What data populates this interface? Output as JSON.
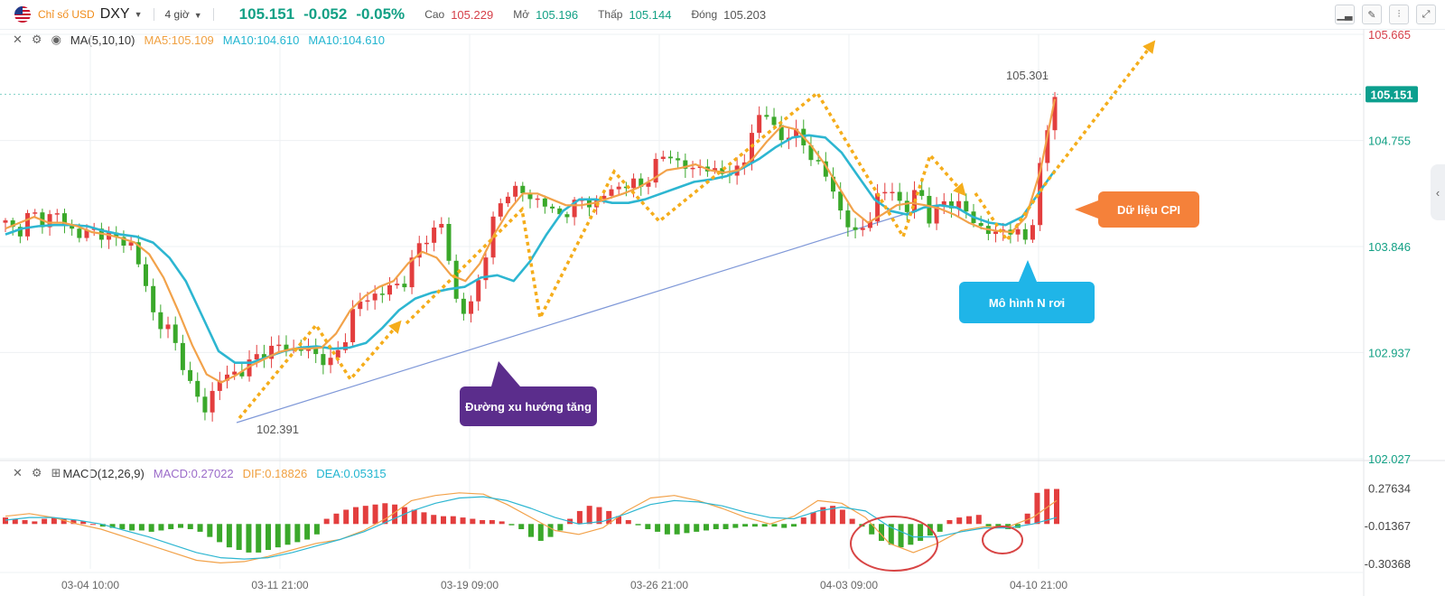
{
  "header": {
    "symbol_name": "Chỉ số USD",
    "symbol": "DXY",
    "timeframe": "4 giờ",
    "last_price": "105.151",
    "change": "-0.052",
    "change_pct": "-0.05%",
    "high_label": "Cao",
    "high_value": "105.229",
    "open_label": "Mở",
    "open_value": "105.196",
    "low_label": "Thấp",
    "low_value": "105.144",
    "close_label": "Đóng",
    "close_value": "105.203",
    "tools": [
      "chart-type-icon",
      "draw-icon",
      "indicator-icon",
      "fullscreen-icon"
    ]
  },
  "main_legend": {
    "indicator": "MA(5,10,10)",
    "ma5": "MA5:105.109",
    "ma10a": "MA10:104.610",
    "ma10b": "MA10:104.610"
  },
  "macd_legend": {
    "indicator": "MACD(12,26,9)",
    "macd": "MACD:0.27022",
    "dif": "DIF:0.18826",
    "dea": "DEA:0.05315"
  },
  "colors": {
    "up": "#e33e3e",
    "down": "#3aa82a",
    "ma5": "#f2a24a",
    "ma10": "#2db6d1",
    "trendline": "#7f98d8",
    "arrow": "#f5ad1b",
    "last_price_bg": "#0c9f8e"
  },
  "annotations": {
    "callout_cpi": "Dữ liệu CPI",
    "callout_n_pattern": "Mô hình N rơi",
    "callout_trend": "Đường xu hướng tăng",
    "low_marker": "102.391",
    "high_marker": "105.301"
  },
  "chart_data": [
    {
      "type": "candlestick",
      "name": "DXY",
      "y_ticks": [
        "105.665",
        "104.755",
        "103.846",
        "102.937",
        "102.027"
      ],
      "last_price_label": "105.151",
      "ylim": [
        102.027,
        105.665
      ],
      "x_ticks": [
        "03-04 10:00",
        "03-11 21:00",
        "03-19 09:00",
        "03-26 21:00",
        "04-03 09:00",
        "04-10 21:00"
      ],
      "close_path": [
        104.05,
        103.95,
        104.15,
        104.05,
        104.15,
        104.0,
        103.95,
        103.98,
        103.95,
        103.9,
        103.88,
        103.6,
        103.2,
        103.15,
        102.9,
        102.6,
        102.45,
        102.7,
        102.75,
        102.78,
        102.9,
        102.95,
        103.0,
        102.95,
        102.98,
        102.9,
        102.85,
        103.0,
        103.35,
        103.4,
        103.45,
        103.5,
        103.55,
        103.85,
        103.95,
        104.05,
        103.4,
        103.25,
        103.6,
        104.05,
        104.3,
        104.35,
        104.25,
        104.25,
        104.1,
        104.15,
        104.25,
        104.2,
        104.3,
        104.35,
        104.4,
        104.35,
        104.55,
        104.65,
        104.55,
        104.5,
        104.55,
        104.45,
        104.5,
        104.5,
        104.95,
        104.98,
        104.75,
        104.85,
        104.7,
        104.55,
        104.4,
        104.1,
        103.95,
        104.05,
        104.3,
        104.35,
        104.1,
        104.4,
        104.05,
        104.25,
        104.2,
        104.15,
        104.0,
        103.95,
        104.0,
        103.95,
        103.9,
        104.65,
        105.15
      ],
      "ma5_path": [
        104.0,
        104.05,
        104.1,
        104.05,
        104.05,
        104.02,
        103.97,
        103.95,
        103.92,
        103.88,
        103.78,
        103.58,
        103.3,
        103.0,
        102.75,
        102.68,
        102.74,
        102.82,
        102.88,
        102.94,
        102.97,
        102.97,
        102.98,
        103.1,
        103.3,
        103.42,
        103.5,
        103.55,
        103.7,
        103.8,
        103.75,
        103.6,
        103.55,
        103.7,
        103.95,
        104.15,
        104.3,
        104.3,
        104.25,
        104.2,
        104.2,
        104.22,
        104.26,
        104.3,
        104.35,
        104.42,
        104.5,
        104.52,
        104.55,
        104.5,
        104.48,
        104.5,
        104.6,
        104.75,
        104.88,
        104.85,
        104.72,
        104.55,
        104.35,
        104.15,
        104.05,
        104.12,
        104.2,
        104.22,
        104.2,
        104.17,
        104.12,
        104.05,
        104.0,
        103.98,
        103.97,
        104.1,
        104.5,
        105.11
      ],
      "ma10_path": [
        103.95,
        104.0,
        104.02,
        104.03,
        104.03,
        104.02,
        103.98,
        103.95,
        103.93,
        103.88,
        103.75,
        103.55,
        103.25,
        102.95,
        102.85,
        102.85,
        102.9,
        102.95,
        102.98,
        102.99,
        102.97,
        102.98,
        103.02,
        103.15,
        103.3,
        103.4,
        103.45,
        103.48,
        103.5,
        103.58,
        103.6,
        103.55,
        103.72,
        103.95,
        104.15,
        104.25,
        104.25,
        104.22,
        104.22,
        104.25,
        104.3,
        104.35,
        104.4,
        104.42,
        104.45,
        104.52,
        104.6,
        104.7,
        104.78,
        104.8,
        104.78,
        104.65,
        104.45,
        104.25,
        104.15,
        104.12,
        104.18,
        104.2,
        104.18,
        104.1,
        104.05,
        104.03,
        104.1,
        104.3,
        104.5
      ]
    },
    {
      "type": "bar",
      "name": "MACD",
      "y_ticks": [
        "0.27634",
        "-0.01367",
        "-0.30368"
      ],
      "ylim": [
        -0.36,
        0.35
      ],
      "histogram": [
        0.05,
        0.04,
        0.03,
        0.02,
        0.04,
        0.05,
        0.04,
        0.03,
        0.02,
        0.0,
        -0.02,
        -0.03,
        -0.04,
        -0.05,
        -0.05,
        -0.06,
        -0.05,
        -0.04,
        -0.03,
        -0.04,
        -0.06,
        -0.1,
        -0.14,
        -0.18,
        -0.2,
        -0.22,
        -0.22,
        -0.2,
        -0.18,
        -0.16,
        -0.14,
        -0.12,
        -0.08,
        0.04,
        0.08,
        0.11,
        0.13,
        0.14,
        0.15,
        0.16,
        0.15,
        0.13,
        0.11,
        0.09,
        0.07,
        0.06,
        0.06,
        0.05,
        0.04,
        0.03,
        0.03,
        0.02,
        -0.01,
        -0.04,
        -0.1,
        -0.13,
        -0.1,
        -0.05,
        0.04,
        0.1,
        0.14,
        0.13,
        0.1,
        0.06,
        0.03,
        -0.01,
        -0.04,
        -0.06,
        -0.08,
        -0.08,
        -0.07,
        -0.06,
        -0.05,
        -0.04,
        -0.04,
        -0.03,
        -0.02,
        -0.02,
        -0.02,
        -0.02,
        -0.03,
        -0.02,
        0.05,
        0.09,
        0.13,
        0.14,
        0.11,
        0.04,
        -0.02,
        -0.08,
        -0.13,
        -0.16,
        -0.18,
        -0.16,
        -0.13,
        -0.09,
        -0.06,
        0.03,
        0.05,
        0.06,
        0.07,
        -0.02,
        -0.03,
        -0.04,
        -0.03,
        0.08,
        0.24,
        0.27,
        0.27
      ],
      "dif_path": [
        0.06,
        0.08,
        0.05,
        0.0,
        -0.04,
        -0.1,
        -0.16,
        -0.22,
        -0.28,
        -0.3,
        -0.29,
        -0.25,
        -0.2,
        -0.15,
        -0.12,
        -0.05,
        0.05,
        0.18,
        0.22,
        0.24,
        0.23,
        0.15,
        0.05,
        -0.05,
        -0.08,
        -0.03,
        0.1,
        0.2,
        0.22,
        0.18,
        0.12,
        0.05,
        0.0,
        0.06,
        0.18,
        0.16,
        0.05,
        -0.15,
        -0.22,
        -0.15,
        -0.05,
        -0.02,
        -0.02,
        0.05,
        0.18
      ],
      "dea_path": [
        0.03,
        0.05,
        0.05,
        0.03,
        0.0,
        -0.05,
        -0.1,
        -0.16,
        -0.22,
        -0.26,
        -0.27,
        -0.26,
        -0.22,
        -0.17,
        -0.12,
        -0.06,
        0.02,
        0.1,
        0.16,
        0.2,
        0.21,
        0.18,
        0.12,
        0.05,
        0.0,
        0.02,
        0.08,
        0.15,
        0.18,
        0.17,
        0.14,
        0.09,
        0.05,
        0.04,
        0.1,
        0.13,
        0.1,
        -0.02,
        -0.1,
        -0.1,
        -0.06,
        -0.03,
        -0.03,
        0.0,
        0.05
      ]
    }
  ]
}
